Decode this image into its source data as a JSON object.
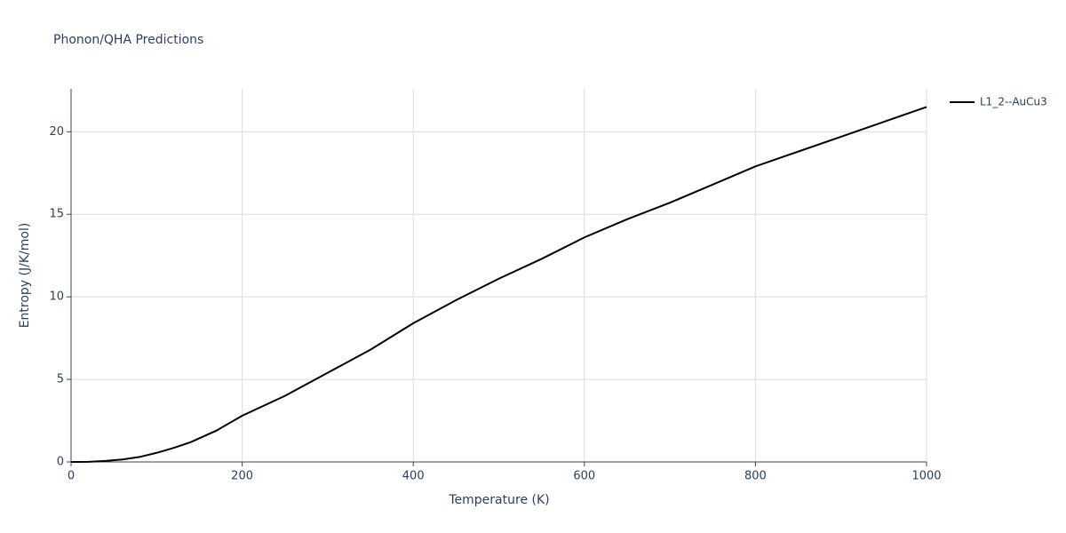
{
  "chart_data": {
    "type": "line",
    "title": "Phonon/QHA Predictions",
    "x_label": "Temperature (K)",
    "y_label": "Entropy (J/K/mol)",
    "x": [
      0,
      20,
      40,
      60,
      80,
      100,
      120,
      140,
      170,
      200,
      250,
      300,
      350,
      400,
      450,
      500,
      550,
      600,
      650,
      700,
      750,
      800,
      850,
      900,
      950,
      1000
    ],
    "series": [
      {
        "name": "L1_2--AuCu3",
        "color": "#000000",
        "values": [
          0,
          0.01,
          0.06,
          0.15,
          0.3,
          0.55,
          0.85,
          1.2,
          1.9,
          2.8,
          4.0,
          5.4,
          6.8,
          8.4,
          9.8,
          11.1,
          12.3,
          13.6,
          14.7,
          15.7,
          16.8,
          17.9,
          18.8,
          19.7,
          20.6,
          21.5
        ]
      }
    ],
    "xlim": [
      0,
      1000
    ],
    "xticks": [
      0,
      200,
      400,
      600,
      800,
      1000
    ],
    "ylim": [
      0,
      22.6
    ],
    "yticks": [
      0,
      5,
      10,
      15,
      20
    ],
    "grid": true,
    "legend": "right"
  }
}
